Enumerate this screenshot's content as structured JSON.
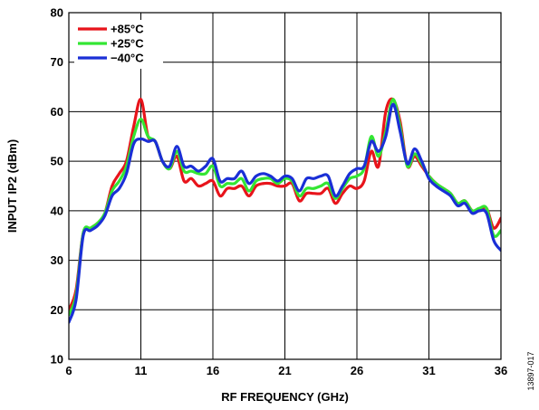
{
  "chart_data": {
    "type": "line",
    "title": "",
    "xlabel": "RF FREQUENCY (GHz)",
    "ylabel": "INPUT IP2 (dBm)",
    "xlim": [
      6,
      36
    ],
    "ylim": [
      10,
      80
    ],
    "xticks": [
      6,
      11,
      16,
      21,
      26,
      31,
      36
    ],
    "yticks": [
      10,
      20,
      30,
      40,
      50,
      60,
      70,
      80
    ],
    "grid": true,
    "legend_position": "top-left",
    "series": [
      {
        "name": "+85°C",
        "color": "#e8141b",
        "x": [
          6,
          6.5,
          7,
          7.5,
          8,
          8.5,
          9,
          9.5,
          10,
          10.5,
          11,
          11.5,
          12,
          12.5,
          13,
          13.5,
          14,
          14.5,
          15,
          15.5,
          16,
          16.5,
          17,
          17.5,
          18,
          18.5,
          19,
          19.5,
          20,
          20.5,
          21,
          21.5,
          22,
          22.5,
          23,
          23.5,
          24,
          24.5,
          25,
          25.5,
          26,
          26.5,
          27,
          27.5,
          28,
          28.5,
          29,
          29.5,
          30,
          30.5,
          31,
          31.5,
          32,
          32.5,
          33,
          33.5,
          34,
          34.5,
          35,
          35.5,
          36
        ],
        "y": [
          20,
          24,
          35.5,
          36.5,
          37.5,
          39.5,
          45,
          47.5,
          50,
          57,
          62.5,
          55,
          54,
          50,
          48.5,
          51,
          46,
          46.5,
          45,
          45.5,
          46,
          43,
          44.5,
          44.5,
          45,
          43,
          45,
          45.5,
          45.5,
          45,
          45,
          45.5,
          42,
          43.5,
          43.5,
          43.5,
          44.5,
          41.5,
          43.5,
          45,
          44.5,
          46,
          52,
          49,
          60,
          62.5,
          58,
          49,
          51,
          49,
          47,
          45.5,
          44.5,
          43.5,
          41.5,
          42,
          40,
          40,
          40.5,
          36.5,
          38.5
        ]
      },
      {
        "name": "+25°C",
        "color": "#33e633",
        "x": [
          6,
          6.5,
          7,
          7.5,
          8,
          8.5,
          9,
          9.5,
          10,
          10.5,
          11,
          11.5,
          12,
          12.5,
          13,
          13.5,
          14,
          14.5,
          15,
          15.5,
          16,
          16.5,
          17,
          17.5,
          18,
          18.5,
          19,
          19.5,
          20,
          20.5,
          21,
          21.5,
          22,
          22.5,
          23,
          23.5,
          24,
          24.5,
          25,
          25.5,
          26,
          26.5,
          27,
          27.5,
          28,
          28.5,
          29,
          29.5,
          30,
          30.5,
          31,
          31.5,
          32,
          32.5,
          33,
          33.5,
          34,
          34.5,
          35,
          35.5,
          36
        ],
        "y": [
          19,
          23,
          35.5,
          36.5,
          37.5,
          39.5,
          44,
          46,
          49,
          55,
          58.5,
          55,
          54,
          50,
          48.5,
          52,
          48,
          48,
          47.5,
          47.5,
          49,
          45,
          45.5,
          45.5,
          46.5,
          44,
          46,
          46.5,
          46.5,
          45.5,
          46.5,
          46,
          43,
          44.5,
          44.5,
          45,
          45.5,
          42.5,
          44.5,
          46.5,
          47,
          48.5,
          55,
          51,
          56,
          62.5,
          57,
          49,
          51.5,
          49.5,
          47,
          45.5,
          44.5,
          43.5,
          41.5,
          42,
          40,
          40.5,
          40.5,
          35,
          36
        ]
      },
      {
        "name": "−40°C",
        "color": "#1a2fd6",
        "x": [
          6,
          6.5,
          7,
          7.5,
          8,
          8.5,
          9,
          9.5,
          10,
          10.5,
          11,
          11.5,
          12,
          12.5,
          13,
          13.5,
          14,
          14.5,
          15,
          15.5,
          16,
          16.5,
          17,
          17.5,
          18,
          18.5,
          19,
          19.5,
          20,
          20.5,
          21,
          21.5,
          22,
          22.5,
          23,
          23.5,
          24,
          24.5,
          25,
          25.5,
          26,
          26.5,
          27,
          27.5,
          28,
          28.5,
          29,
          29.5,
          30,
          30.5,
          31,
          31.5,
          32,
          32.5,
          33,
          33.5,
          34,
          34.5,
          35,
          35.5,
          36
        ],
        "y": [
          17.5,
          22,
          35,
          36,
          37,
          39,
          43,
          44.5,
          47.5,
          53.5,
          54.5,
          54,
          54,
          50,
          49,
          53,
          49,
          49,
          48,
          49,
          50.5,
          46,
          46.5,
          46.5,
          48,
          45.5,
          47,
          47.5,
          47,
          46,
          47,
          46.5,
          44,
          46.5,
          46.5,
          47,
          47,
          43,
          45,
          47.5,
          48.5,
          49,
          54,
          52,
          55,
          61.5,
          56,
          49.5,
          52.5,
          50,
          46.5,
          45,
          44,
          43,
          41,
          41.5,
          39.5,
          40,
          39.5,
          34,
          32
        ]
      }
    ]
  },
  "figure_id": "13897-017"
}
